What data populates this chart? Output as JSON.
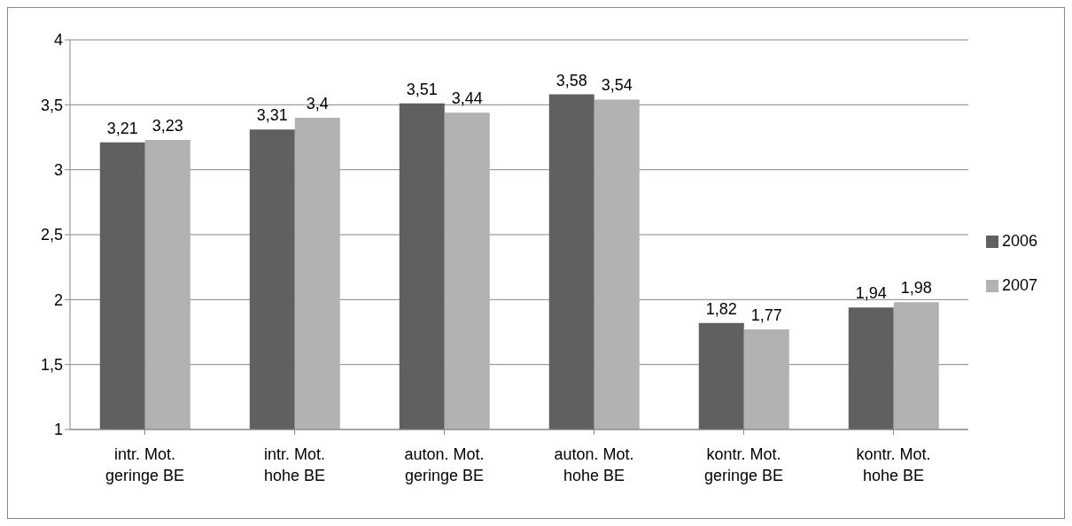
{
  "chart_data": {
    "type": "bar",
    "categories": [
      "intr. Mot. geringe BE",
      "intr. Mot. hohe BE",
      "auton. Mot. geringe BE",
      "auton. Mot. hohe BE",
      "kontr. Mot. geringe BE",
      "kontr. Mot. hohe BE"
    ],
    "series": [
      {
        "name": "2006",
        "color": "#606060",
        "values": [
          3.21,
          3.31,
          3.51,
          3.58,
          1.82,
          1.94
        ],
        "value_labels": [
          "3,21",
          "3,31",
          "3,51",
          "3,58",
          "1,82",
          "1,94"
        ]
      },
      {
        "name": "2007",
        "color": "#b2b2b2",
        "values": [
          3.23,
          3.4,
          3.44,
          3.54,
          1.77,
          1.98
        ],
        "value_labels": [
          "3,23",
          "3,4",
          "3,44",
          "3,54",
          "1,77",
          "1,98"
        ]
      }
    ],
    "ylim": [
      1,
      4
    ],
    "yticks": [
      1,
      {
        "value": 1.5,
        "label": "1,5"
      },
      2,
      {
        "value": 2.5,
        "label": "2,5"
      },
      3,
      {
        "value": 3.5,
        "label": "3,5"
      },
      4
    ],
    "grid": "y",
    "legend": "right"
  }
}
